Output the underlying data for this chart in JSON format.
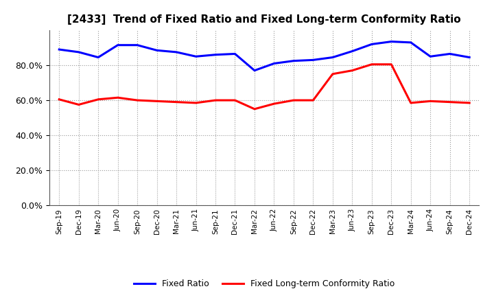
{
  "title": "[2433]  Trend of Fixed Ratio and Fixed Long-term Conformity Ratio",
  "x_labels": [
    "Sep-19",
    "Dec-19",
    "Mar-20",
    "Jun-20",
    "Sep-20",
    "Dec-20",
    "Mar-21",
    "Jun-21",
    "Sep-21",
    "Dec-21",
    "Mar-22",
    "Jun-22",
    "Sep-22",
    "Dec-22",
    "Mar-23",
    "Jun-23",
    "Sep-23",
    "Dec-23",
    "Mar-24",
    "Jun-24",
    "Sep-24",
    "Dec-24"
  ],
  "fixed_ratio": [
    89.0,
    87.5,
    84.5,
    91.5,
    91.5,
    88.5,
    87.5,
    85.0,
    86.0,
    86.5,
    77.0,
    81.0,
    82.5,
    83.0,
    84.5,
    88.0,
    92.0,
    93.5,
    93.0,
    85.0,
    86.5,
    84.5
  ],
  "fixed_lt_ratio": [
    60.5,
    57.5,
    60.5,
    61.5,
    60.0,
    59.5,
    59.0,
    58.5,
    60.0,
    60.0,
    55.0,
    58.0,
    60.0,
    60.0,
    75.0,
    77.0,
    80.5,
    80.5,
    58.5,
    59.5,
    59.0,
    58.5
  ],
  "fixed_ratio_color": "#0000FF",
  "fixed_lt_ratio_color": "#FF0000",
  "ylim": [
    0,
    100
  ],
  "yticks": [
    0,
    20,
    40,
    60,
    80
  ],
  "bg_color": "#FFFFFF",
  "plot_bg_color": "#FFFFFF",
  "grid_color": "#999999",
  "legend_fixed_ratio": "Fixed Ratio",
  "legend_fixed_lt_ratio": "Fixed Long-term Conformity Ratio",
  "line_width": 2.2
}
